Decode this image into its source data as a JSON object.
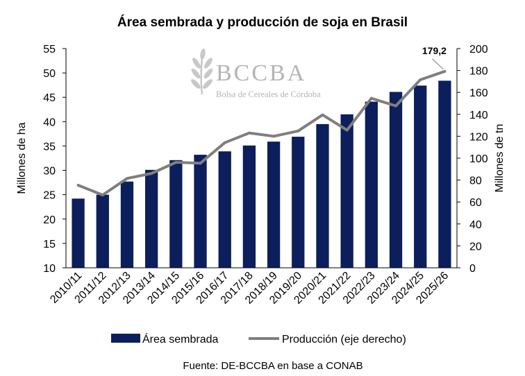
{
  "chart_data": {
    "type": "bar+line",
    "title": "Área sembrada y producción de soja en Brasil",
    "categories": [
      "2010/11",
      "2011/12",
      "2012/13",
      "2013/14",
      "2014/15",
      "2015/16",
      "2016/17",
      "2017/18",
      "2018/19",
      "2019/20",
      "2020/21",
      "2021/22",
      "2022/23",
      "2023/24",
      "2024/25",
      "2025/26"
    ],
    "series": [
      {
        "name": "Área sembrada",
        "type": "bar",
        "axis": "left",
        "color": "#0c1f5c",
        "values": [
          24.2,
          25.0,
          27.7,
          30.1,
          32.1,
          33.2,
          33.9,
          35.1,
          35.9,
          36.9,
          39.5,
          41.5,
          44.1,
          46.1,
          47.4,
          48.4
        ]
      },
      {
        "name": "Producción (eje derecho)",
        "type": "line",
        "axis": "right",
        "color": "#7f7f7f",
        "values": [
          75.3,
          66.4,
          81.5,
          86.1,
          96.2,
          95.4,
          114.1,
          123.0,
          120.0,
          124.8,
          139.5,
          125.6,
          154.6,
          147.7,
          171.5,
          179.2
        ]
      }
    ],
    "yleft": {
      "label": "Millones de ha",
      "ticks": [
        "10",
        "15",
        "20",
        "25",
        "30",
        "35",
        "40",
        "45",
        "50",
        "55"
      ],
      "min": 10,
      "max": 55
    },
    "yright": {
      "label": "Millones de tn",
      "ticks": [
        "0",
        "20",
        "40",
        "60",
        "80",
        "100",
        "120",
        "140",
        "160",
        "180",
        "200"
      ],
      "min": 0,
      "max": 200
    },
    "annotation": {
      "text": "179,2"
    },
    "legend_position": "bottom",
    "grid": false
  },
  "watermark": {
    "name": "BCCBA",
    "subtitle": "Bolsa de Cereales de Córdoba",
    "icon": "wheat-icon"
  },
  "source": "Fuente: DE-BCCBA en base a CONAB"
}
